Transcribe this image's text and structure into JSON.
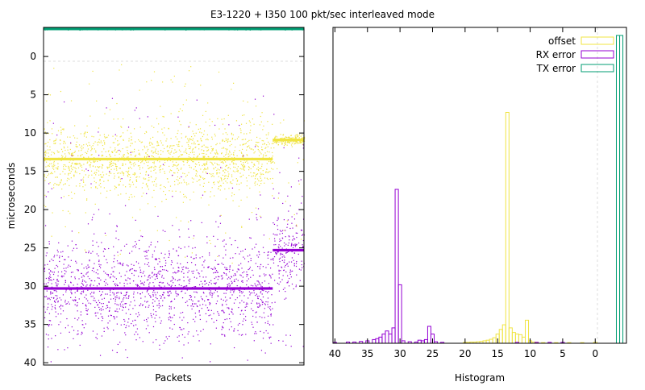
{
  "title": "E3-1220 + I350 100 pkt/sec interleaved mode",
  "colors": {
    "offset": "#f0e442",
    "rx": "#9400d3",
    "tx": "#009e73"
  },
  "chart_data": [
    {
      "type": "scatter",
      "xlabel": "Packets",
      "ylabel": "microseconds",
      "ylim": [
        40.3,
        -3.8
      ],
      "y_inverted": true,
      "yticks": [
        0,
        5,
        10,
        15,
        20,
        25,
        30,
        35,
        40
      ],
      "x_ticks_shown": false,
      "zero_line": true,
      "series": [
        {
          "name": "offset",
          "color": "#f0e442",
          "segments": [
            {
              "x_from": 0,
              "x_to": 0.88,
              "center": 13.4,
              "spread": 2.2,
              "outliers": [
                1,
                27
              ]
            },
            {
              "x_from": 0.88,
              "x_to": 1.0,
              "center": 10.9,
              "spread": 0.3,
              "outliers": [
                8,
                25
              ]
            }
          ]
        },
        {
          "name": "RX error",
          "color": "#9400d3",
          "segments": [
            {
              "x_from": 0,
              "x_to": 0.88,
              "center": 30.3,
              "spread": 3.2,
              "outliers": [
                5,
                40
              ]
            },
            {
              "x_from": 0.88,
              "x_to": 1.0,
              "center": 25.3,
              "spread": 3.0,
              "outliers": [
                5,
                40
              ]
            }
          ]
        },
        {
          "name": "TX error",
          "color": "#009e73",
          "segments": [
            {
              "x_from": 0,
              "x_to": 1.0,
              "center": -3.6,
              "spread": 0.05,
              "outliers": []
            }
          ]
        }
      ]
    },
    {
      "type": "bar",
      "style": "histogram-steps",
      "xlabel": "Histogram",
      "xlim": [
        40.3,
        -4.8
      ],
      "x_inverted": true,
      "xticks": [
        40,
        35,
        30,
        25,
        20,
        15,
        10,
        5,
        0
      ],
      "ylim": [
        0,
        1.0
      ],
      "legend_position": "top-right",
      "series": [
        {
          "name": "offset",
          "color": "#f0e442",
          "bins": [
            [
              20,
              0.003
            ],
            [
              19.5,
              0.003
            ],
            [
              19,
              0.004
            ],
            [
              18.5,
              0.004
            ],
            [
              18,
              0.005
            ],
            [
              17.5,
              0.006
            ],
            [
              17,
              0.008
            ],
            [
              16.5,
              0.01
            ],
            [
              16,
              0.013
            ],
            [
              15.5,
              0.018
            ],
            [
              15,
              0.03
            ],
            [
              14.5,
              0.045
            ],
            [
              14,
              0.06
            ],
            [
              13.5,
              0.75
            ],
            [
              13,
              0.05
            ],
            [
              12.5,
              0.035
            ],
            [
              12,
              0.03
            ],
            [
              11.5,
              0.028
            ],
            [
              11,
              0.02
            ],
            [
              10.5,
              0.075
            ],
            [
              10,
              0.008
            ],
            [
              9.5,
              0.004
            ],
            [
              9,
              0.003
            ],
            [
              8,
              0.002
            ],
            [
              6,
              0.002
            ],
            [
              4,
              0.002
            ],
            [
              2,
              0.002
            ],
            [
              0,
              0.003
            ]
          ]
        },
        {
          "name": "RX error",
          "color": "#9400d3",
          "bins": [
            [
              40,
              0.003
            ],
            [
              38,
              0.004
            ],
            [
              37,
              0.004
            ],
            [
              36,
              0.006
            ],
            [
              35,
              0.008
            ],
            [
              34,
              0.012
            ],
            [
              33.5,
              0.015
            ],
            [
              33,
              0.02
            ],
            [
              32.5,
              0.03
            ],
            [
              32,
              0.04
            ],
            [
              31.5,
              0.03
            ],
            [
              31,
              0.05
            ],
            [
              30.5,
              0.5
            ],
            [
              30,
              0.19
            ],
            [
              29.5,
              0.008
            ],
            [
              28.5,
              0.005
            ],
            [
              27.5,
              0.004
            ],
            [
              27,
              0.01
            ],
            [
              26.5,
              0.008
            ],
            [
              26,
              0.012
            ],
            [
              25.5,
              0.055
            ],
            [
              25,
              0.03
            ],
            [
              24.5,
              0.005
            ],
            [
              23.5,
              0.003
            ],
            [
              12,
              0.003
            ],
            [
              9,
              0.003
            ],
            [
              7,
              0.003
            ],
            [
              5,
              0.003
            ]
          ]
        },
        {
          "name": "TX error",
          "color": "#009e73",
          "bins": [
            [
              -3.5,
              1.0
            ],
            [
              -4.0,
              1.0
            ]
          ]
        }
      ]
    }
  ]
}
